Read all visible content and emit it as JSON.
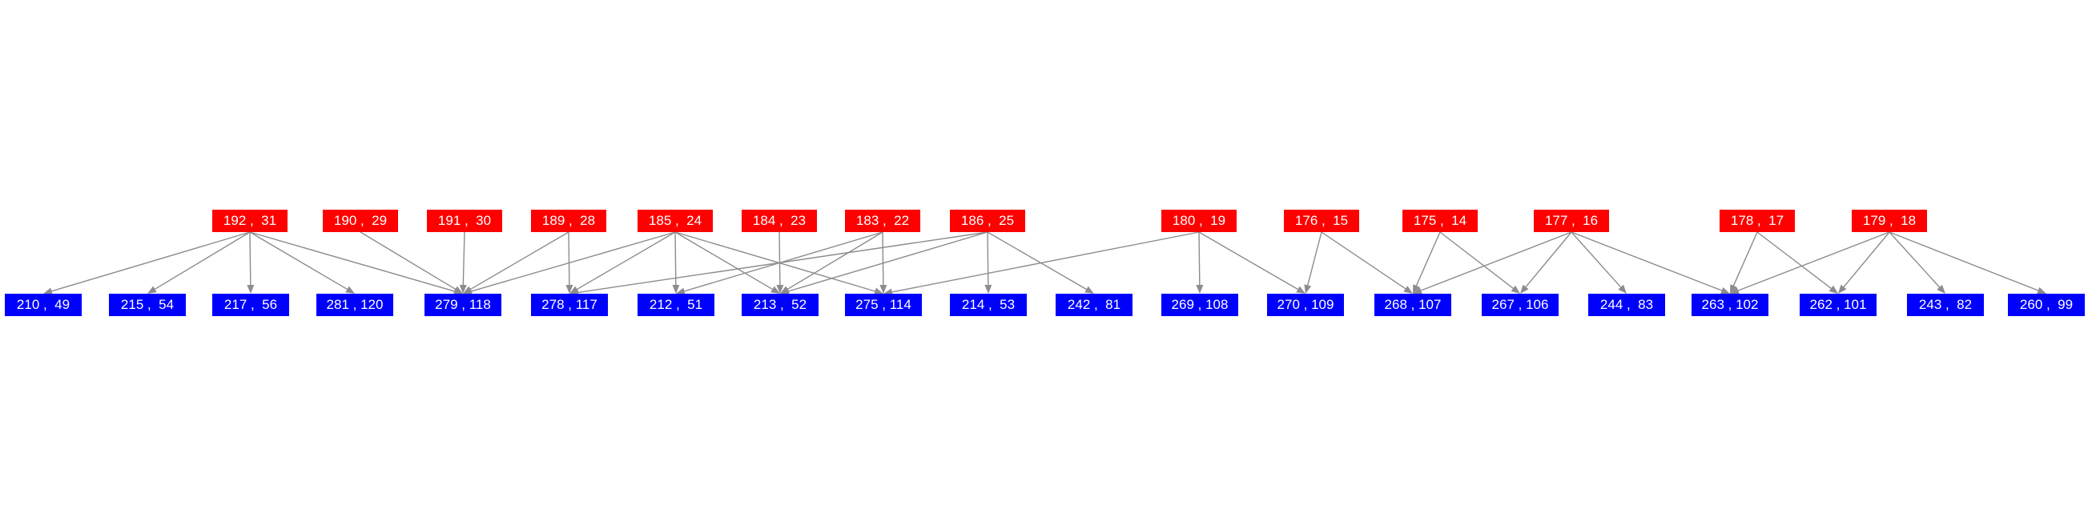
{
  "diagram": {
    "colors": {
      "top_node": "#ff0000",
      "bottom_node": "#0000ff",
      "edge": "#8c8c8c",
      "text": "#ffffff"
    },
    "top_nodes": [
      {
        "id": "t192",
        "label": "192 ,  31"
      },
      {
        "id": "t190",
        "label": "190 ,  29"
      },
      {
        "id": "t191",
        "label": "191 ,  30"
      },
      {
        "id": "t189",
        "label": "189 ,  28"
      },
      {
        "id": "t185",
        "label": "185 ,  24"
      },
      {
        "id": "t184",
        "label": "184 ,  23"
      },
      {
        "id": "t183",
        "label": "183 ,  22"
      },
      {
        "id": "t186",
        "label": "186 ,  25"
      },
      {
        "id": "t180",
        "label": "180 ,  19"
      },
      {
        "id": "t176",
        "label": "176 ,  15"
      },
      {
        "id": "t175",
        "label": "175 ,  14"
      },
      {
        "id": "t177",
        "label": "177 ,  16"
      },
      {
        "id": "t178",
        "label": "178 ,  17"
      },
      {
        "id": "t179",
        "label": "179 ,  18"
      }
    ],
    "bottom_nodes": [
      {
        "id": "b210",
        "label": "210 ,  49"
      },
      {
        "id": "b215",
        "label": "215 ,  54"
      },
      {
        "id": "b217",
        "label": "217 ,  56"
      },
      {
        "id": "b281",
        "label": "281 , 120"
      },
      {
        "id": "b279",
        "label": "279 , 118"
      },
      {
        "id": "b278",
        "label": "278 , 117"
      },
      {
        "id": "b212",
        "label": "212 ,  51"
      },
      {
        "id": "b213",
        "label": "213 ,  52"
      },
      {
        "id": "b275",
        "label": "275 , 114"
      },
      {
        "id": "b214",
        "label": "214 ,  53"
      },
      {
        "id": "b242",
        "label": "242 ,  81"
      },
      {
        "id": "b269",
        "label": "269 , 108"
      },
      {
        "id": "b270",
        "label": "270 , 109"
      },
      {
        "id": "b268",
        "label": "268 , 107"
      },
      {
        "id": "b267",
        "label": "267 , 106"
      },
      {
        "id": "b244",
        "label": "244 ,  83"
      },
      {
        "id": "b263",
        "label": "263 , 102"
      },
      {
        "id": "b262",
        "label": "262 , 101"
      },
      {
        "id": "b243",
        "label": "243 ,  82"
      },
      {
        "id": "b260",
        "label": "260 ,  99"
      }
    ],
    "edges": [
      [
        "t192",
        "b210"
      ],
      [
        "t192",
        "b215"
      ],
      [
        "t192",
        "b217"
      ],
      [
        "t192",
        "b281"
      ],
      [
        "t192",
        "b279"
      ],
      [
        "t190",
        "b279"
      ],
      [
        "t191",
        "b279"
      ],
      [
        "t189",
        "b279"
      ],
      [
        "t189",
        "b278"
      ],
      [
        "t185",
        "b279"
      ],
      [
        "t185",
        "b278"
      ],
      [
        "t185",
        "b212"
      ],
      [
        "t185",
        "b213"
      ],
      [
        "t185",
        "b275"
      ],
      [
        "t184",
        "b213"
      ],
      [
        "t183",
        "b212"
      ],
      [
        "t183",
        "b213"
      ],
      [
        "t183",
        "b275"
      ],
      [
        "t186",
        "b278"
      ],
      [
        "t186",
        "b213"
      ],
      [
        "t186",
        "b214"
      ],
      [
        "t186",
        "b242"
      ],
      [
        "t180",
        "b275"
      ],
      [
        "t180",
        "b269"
      ],
      [
        "t180",
        "b270"
      ],
      [
        "t176",
        "b270"
      ],
      [
        "t176",
        "b268"
      ],
      [
        "t175",
        "b268"
      ],
      [
        "t175",
        "b267"
      ],
      [
        "t177",
        "b268"
      ],
      [
        "t177",
        "b267"
      ],
      [
        "t177",
        "b244"
      ],
      [
        "t177",
        "b263"
      ],
      [
        "t178",
        "b263"
      ],
      [
        "t178",
        "b262"
      ],
      [
        "t179",
        "b263"
      ],
      [
        "t179",
        "b262"
      ],
      [
        "t179",
        "b243"
      ],
      [
        "t179",
        "b260"
      ]
    ]
  }
}
